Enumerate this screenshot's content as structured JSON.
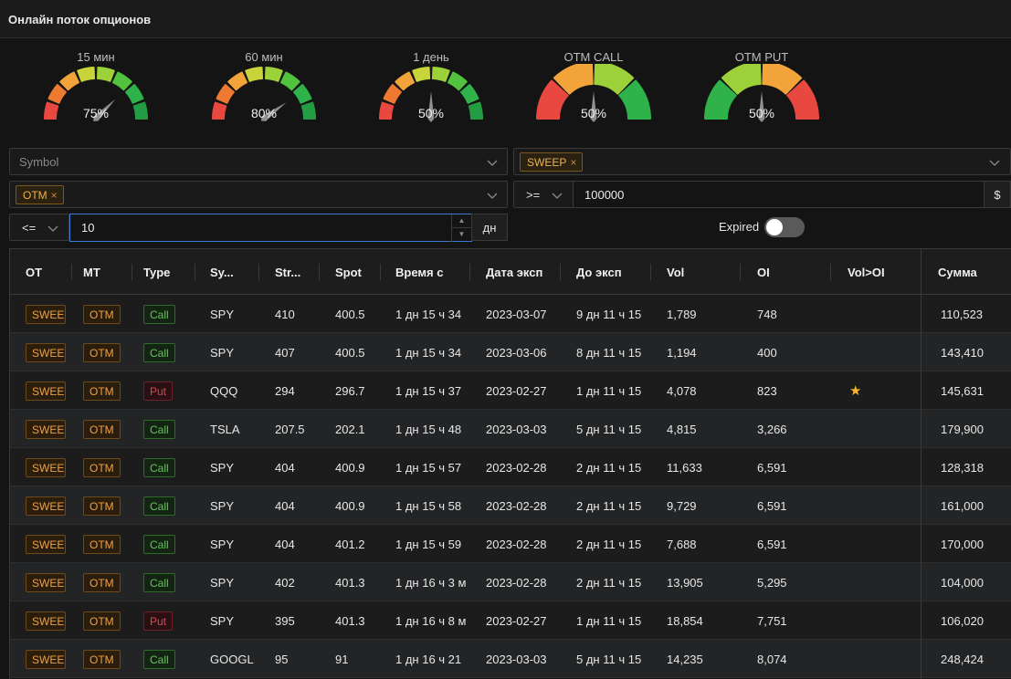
{
  "app": {
    "title": "Онлайн поток опционов"
  },
  "colors": {
    "accent": "#f0a040",
    "call": "#62c25a",
    "put": "#d9484f",
    "input_focus": "#3b7bd4"
  },
  "gauges": [
    {
      "label": "15 мин",
      "value": "75%",
      "level": 0.75,
      "type": "gradient"
    },
    {
      "label": "60 мин",
      "value": "80%",
      "level": 0.8,
      "type": "gradient"
    },
    {
      "label": "1 день",
      "value": "50%",
      "level": 0.5,
      "type": "gradient"
    },
    {
      "label": "OTM CALL",
      "value": "50%",
      "level": 0.5,
      "type": "call"
    },
    {
      "label": "OTM PUT",
      "value": "50%",
      "level": 0.5,
      "type": "put"
    }
  ],
  "filters": {
    "symbol_placeholder": "Symbol",
    "order_type_tag": "SWEEP",
    "moneyness_tag": "OTM",
    "premium_operator": ">=",
    "premium_value": "100000",
    "premium_unit": "$",
    "days_operator": "<=",
    "days_value": "10",
    "days_unit": "дн",
    "expired_label": "Expired",
    "expired_on": false
  },
  "table": {
    "headers": {
      "ot": "OT",
      "mt": "MT",
      "type": "Type",
      "symbol": "Sy...",
      "strike": "Str...",
      "spot": "Spot",
      "time": "Время с",
      "exp_date": "Дата эксп",
      "to_exp": "До эксп",
      "vol": "Vol",
      "oi": "OI",
      "vol_oi": "Vol>OI",
      "sum": "Сумма"
    },
    "rows": [
      {
        "ot": "SWEEP",
        "mt": "OTM",
        "type": "Call",
        "symbol": "SPY",
        "strike": "410",
        "spot": "400.5",
        "time": "1 дн 15 ч 34",
        "exp_date": "2023-03-07",
        "to_exp": "9 дн 11 ч 15",
        "vol": "1,789",
        "oi": "748",
        "vol_oi": "",
        "sum": "110,523"
      },
      {
        "ot": "SWEEP",
        "mt": "OTM",
        "type": "Call",
        "symbol": "SPY",
        "strike": "407",
        "spot": "400.5",
        "time": "1 дн 15 ч 34",
        "exp_date": "2023-03-06",
        "to_exp": "8 дн 11 ч 15",
        "vol": "1,194",
        "oi": "400",
        "vol_oi": "",
        "sum": "143,410"
      },
      {
        "ot": "SWEEP",
        "mt": "OTM",
        "type": "Put",
        "symbol": "QQQ",
        "strike": "294",
        "spot": "296.7",
        "time": "1 дн 15 ч 37",
        "exp_date": "2023-02-27",
        "to_exp": "1 дн 11 ч 15",
        "vol": "4,078",
        "oi": "823",
        "vol_oi": "★",
        "sum": "145,631"
      },
      {
        "ot": "SWEEP",
        "mt": "OTM",
        "type": "Call",
        "symbol": "TSLA",
        "strike": "207.5",
        "spot": "202.1",
        "time": "1 дн 15 ч 48",
        "exp_date": "2023-03-03",
        "to_exp": "5 дн 11 ч 15",
        "vol": "4,815",
        "oi": "3,266",
        "vol_oi": "",
        "sum": "179,900"
      },
      {
        "ot": "SWEEP",
        "mt": "OTM",
        "type": "Call",
        "symbol": "SPY",
        "strike": "404",
        "spot": "400.9",
        "time": "1 дн 15 ч 57",
        "exp_date": "2023-02-28",
        "to_exp": "2 дн 11 ч 15",
        "vol": "11,633",
        "oi": "6,591",
        "vol_oi": "",
        "sum": "128,318"
      },
      {
        "ot": "SWEEP",
        "mt": "OTM",
        "type": "Call",
        "symbol": "SPY",
        "strike": "404",
        "spot": "400.9",
        "time": "1 дн 15 ч 58",
        "exp_date": "2023-02-28",
        "to_exp": "2 дн 11 ч 15",
        "vol": "9,729",
        "oi": "6,591",
        "vol_oi": "",
        "sum": "161,000"
      },
      {
        "ot": "SWEEP",
        "mt": "OTM",
        "type": "Call",
        "symbol": "SPY",
        "strike": "404",
        "spot": "401.2",
        "time": "1 дн 15 ч 59",
        "exp_date": "2023-02-28",
        "to_exp": "2 дн 11 ч 15",
        "vol": "7,688",
        "oi": "6,591",
        "vol_oi": "",
        "sum": "170,000"
      },
      {
        "ot": "SWEEP",
        "mt": "OTM",
        "type": "Call",
        "symbol": "SPY",
        "strike": "402",
        "spot": "401.3",
        "time": "1 дн 16 ч 3 м",
        "exp_date": "2023-02-28",
        "to_exp": "2 дн 11 ч 15",
        "vol": "13,905",
        "oi": "5,295",
        "vol_oi": "",
        "sum": "104,000"
      },
      {
        "ot": "SWEEP",
        "mt": "OTM",
        "type": "Put",
        "symbol": "SPY",
        "strike": "395",
        "spot": "401.3",
        "time": "1 дн 16 ч 8 м",
        "exp_date": "2023-02-27",
        "to_exp": "1 дн 11 ч 15",
        "vol": "18,854",
        "oi": "7,751",
        "vol_oi": "",
        "sum": "106,020"
      },
      {
        "ot": "SWEEP",
        "mt": "OTM",
        "type": "Call",
        "symbol": "GOOGL",
        "strike": "95",
        "spot": "91",
        "time": "1 дн 16 ч 21",
        "exp_date": "2023-03-03",
        "to_exp": "5 дн 11 ч 15",
        "vol": "14,235",
        "oi": "8,074",
        "vol_oi": "",
        "sum": "248,424"
      }
    ]
  }
}
